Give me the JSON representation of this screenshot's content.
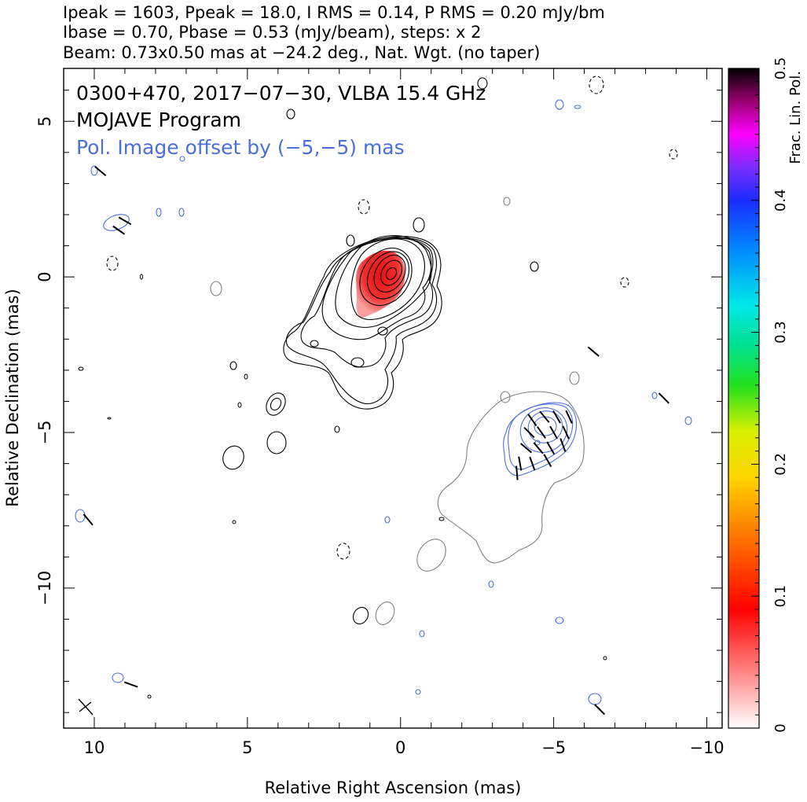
{
  "header": {
    "line1": "Ipeak = 1603, Ppeak = 18.0, I RMS = 0.14, P RMS = 0.20 mJy/bm",
    "line2": "Ibase = 0.70, Pbase = 0.53 (mJy/beam), steps: x 2",
    "line3": "Beam: 0.73x0.50 mas at −24.2 deg., Nat. Wgt. (no taper)"
  },
  "panel": {
    "title": "0300+470, 2017−07−30, VLBA 15.4 GHz",
    "program": "MOJAVE Program",
    "pol_note": "Pol. Image offset by (−5,−5) mas"
  },
  "colors": {
    "stokes_i_contour": "#000000",
    "pol_intensity_contour": "#4a6fd8",
    "offset_i_contour": "#808080",
    "evpa_ticks": "#000000",
    "frac_pol_low": "#ffffff",
    "frac_pol_mid": "#ff0000",
    "frac_pol_high": "#000000"
  },
  "chart_data": {
    "type": "heatmap",
    "title": "0300+470, 2017−07−30, VLBA 15.4 GHz",
    "xlabel": "Relative Right Ascension (mas)",
    "ylabel": "Relative Declination (mas)",
    "xlim": [
      11,
      -10.5
    ],
    "ylim": [
      -14.5,
      6.7
    ],
    "x_ticks": [
      10,
      5,
      0,
      -5,
      -10
    ],
    "y_ticks": [
      5,
      0,
      -5,
      -10
    ],
    "x_tick_labels": [
      "10",
      "5",
      "0",
      "−5",
      "−10"
    ],
    "y_tick_labels": [
      "5",
      "0",
      "−5",
      "−10"
    ],
    "colorbar": {
      "label": "Frac. Lin. Pol.",
      "min": 0,
      "max": 0.5,
      "ticks": [
        0,
        0.1,
        0.2,
        0.3,
        0.4,
        0.5
      ],
      "tick_labels": [
        "0",
        "0.1",
        "0.2",
        "0.3",
        "0.4",
        "0.5"
      ]
    },
    "stats": {
      "i_peak_mjy_per_beam": 1603,
      "p_peak_mjy_per_beam": 18.0,
      "i_rms_mjy_per_beam": 0.14,
      "p_rms_mjy_per_beam": 0.2,
      "i_base_mjy_per_beam": 0.7,
      "p_base_mjy_per_beam": 0.53,
      "contour_step_factor": 2,
      "beam_major_mas": 0.73,
      "beam_minor_mas": 0.5,
      "beam_pa_deg": -24.2,
      "pol_offset_mas": [
        -5,
        -5
      ]
    },
    "core": {
      "ra": 0.0,
      "dec": 0.0
    },
    "jet_direction_deg": 150,
    "i_contour_levels": 9,
    "frac_pol_region": {
      "ra": 0.7,
      "dec": -0.6,
      "frac_pol": 0.05
    },
    "evpa_vectors": [
      {
        "ra": -4.3,
        "dec": -4.6,
        "angle": 125
      },
      {
        "ra": -4.7,
        "dec": -4.5,
        "angle": 130
      },
      {
        "ra": -5.1,
        "dec": -4.5,
        "angle": 120
      },
      {
        "ra": -5.5,
        "dec": -4.5,
        "angle": 115
      },
      {
        "ra": -4.2,
        "dec": -5.0,
        "angle": 135
      },
      {
        "ra": -4.6,
        "dec": -5.0,
        "angle": 125
      },
      {
        "ra": -5.0,
        "dec": -5.0,
        "angle": 120
      },
      {
        "ra": -5.4,
        "dec": -5.0,
        "angle": 115
      },
      {
        "ra": -4.1,
        "dec": -5.5,
        "angle": 140
      },
      {
        "ra": -4.5,
        "dec": -5.5,
        "angle": 130
      },
      {
        "ra": -4.9,
        "dec": -5.5,
        "angle": 120
      },
      {
        "ra": -5.3,
        "dec": -5.4,
        "angle": 110
      },
      {
        "ra": -3.9,
        "dec": -6.0,
        "angle": 100
      },
      {
        "ra": -4.3,
        "dec": -6.0,
        "angle": 110
      },
      {
        "ra": -4.8,
        "dec": -5.9,
        "angle": 120
      },
      {
        "ra": -3.8,
        "dec": -6.3,
        "angle": 95
      },
      {
        "ra": 9.8,
        "dec": 3.4,
        "angle": 140
      },
      {
        "ra": 9.0,
        "dec": 1.8,
        "angle": 150
      },
      {
        "ra": 9.2,
        "dec": 1.5,
        "angle": 145
      },
      {
        "ra": -6.3,
        "dec": -2.4,
        "angle": 140
      },
      {
        "ra": -8.6,
        "dec": -3.9,
        "angle": 135
      },
      {
        "ra": 10.2,
        "dec": -7.8,
        "angle": 130
      },
      {
        "ra": 8.8,
        "dec": -13.1,
        "angle": 160
      },
      {
        "ra": -6.5,
        "dec": -13.9,
        "angle": 135
      }
    ]
  }
}
